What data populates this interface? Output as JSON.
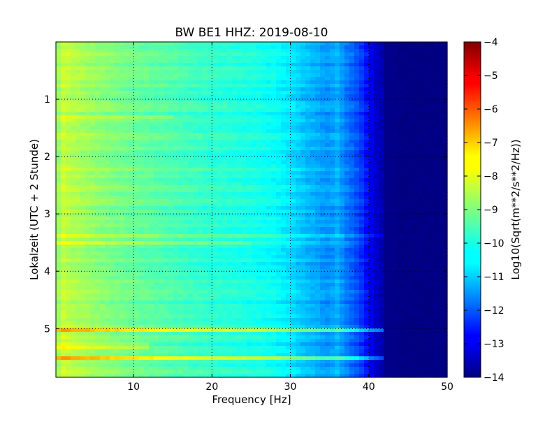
{
  "chart_data": {
    "type": "heatmap",
    "title": "BW BE1 HHZ: 2019-08-10",
    "xlabel": "Frequency [Hz]",
    "ylabel": "Lokalzeit (UTC + 2 Stunde)",
    "xlim": [
      0.1,
      50
    ],
    "ylim": [
      5.85,
      0.0
    ],
    "xticks": [
      10,
      20,
      30,
      40,
      50
    ],
    "yticks": [
      1,
      2,
      3,
      4,
      5
    ],
    "grid": true,
    "colormap": "jet",
    "colorbar": {
      "label": "Log10(Sqrt(m**2/s**2/Hz))",
      "range": [
        -14,
        -4
      ],
      "ticks": [
        -4,
        -5,
        -6,
        -7,
        -8,
        -9,
        -10,
        -11,
        -12,
        -13,
        -14
      ]
    },
    "spectrum_profile": {
      "frequency_hz": [
        0.1,
        1,
        2,
        4,
        7,
        10,
        15,
        20,
        25,
        28,
        30,
        31,
        32,
        33,
        34,
        35,
        36,
        37,
        38,
        39,
        40,
        41,
        42,
        43,
        44,
        45,
        50
      ],
      "level": [
        -8.9,
        -8.3,
        -8.5,
        -8.7,
        -9.0,
        -9.2,
        -9.5,
        -9.8,
        -10.0,
        -10.2,
        -10.5,
        -10.7,
        -10.9,
        -11.0,
        -11.2,
        -11.3,
        -11.0,
        -11.5,
        -11.8,
        -12.2,
        -12.8,
        -13.3,
        -13.6,
        -13.8,
        -14.0,
        -14.0,
        -14.0
      ]
    },
    "bands": [
      {
        "time_h": 5.03,
        "level_offset": 1.8,
        "max_freq_hz": 45
      },
      {
        "time_h": 5.5,
        "level_offset": 1.5,
        "max_freq_hz": 45
      },
      {
        "time_h": 5.3,
        "level_offset": 0.6,
        "max_freq_hz": 12
      },
      {
        "time_h": 1.3,
        "level_offset": 0.4,
        "max_freq_hz": 15
      },
      {
        "time_h": 3.5,
        "level_offset": 0.4,
        "max_freq_hz": 25
      },
      {
        "time_h": 3.38,
        "level_offset": 0.5,
        "max_freq_hz": 45
      }
    ]
  }
}
